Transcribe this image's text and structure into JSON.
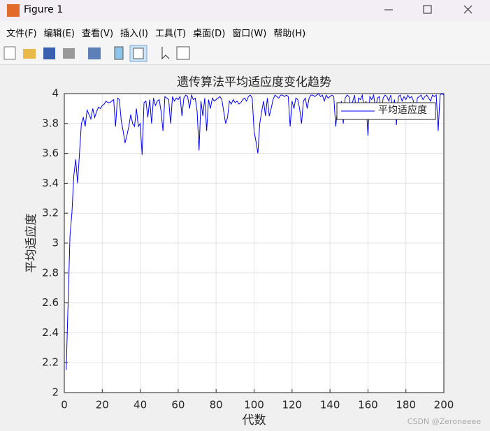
{
  "window": {
    "title": "Figure 1",
    "menu": [
      "文件(F)",
      "编辑(E)",
      "查看(V)",
      "插入(I)",
      "工具(T)",
      "桌面(D)",
      "窗口(W)",
      "帮助(H)"
    ]
  },
  "chart_data": {
    "type": "line",
    "title": "遗传算法平均适应度变化趋势",
    "x_label": "代数",
    "y_label": "平均适应度",
    "x": [
      1,
      2,
      3,
      4,
      5,
      6,
      7,
      8,
      9,
      10,
      11,
      12,
      13,
      14,
      15,
      16,
      17,
      18,
      19,
      20,
      21,
      22,
      23,
      24,
      25,
      26,
      27,
      28,
      29,
      30,
      31,
      32,
      33,
      34,
      35,
      36,
      37,
      38,
      39,
      40,
      41,
      42,
      43,
      44,
      45,
      46,
      47,
      48,
      49,
      50,
      51,
      52,
      53,
      54,
      55,
      56,
      57,
      58,
      59,
      60,
      61,
      62,
      63,
      64,
      65,
      66,
      67,
      68,
      69,
      70,
      71,
      72,
      73,
      74,
      75,
      76,
      77,
      78,
      79,
      80,
      81,
      82,
      83,
      84,
      85,
      86,
      87,
      88,
      89,
      90,
      91,
      92,
      93,
      94,
      95,
      96,
      97,
      98,
      99,
      100,
      101,
      102,
      103,
      104,
      105,
      106,
      107,
      108,
      109,
      110,
      111,
      112,
      113,
      114,
      115,
      116,
      117,
      118,
      119,
      120,
      121,
      122,
      123,
      124,
      125,
      126,
      127,
      128,
      129,
      130,
      131,
      132,
      133,
      134,
      135,
      136,
      137,
      138,
      139,
      140,
      141,
      142,
      143,
      144,
      145,
      146,
      147,
      148,
      149,
      150,
      151,
      152,
      153,
      154,
      155,
      156,
      157,
      158,
      159,
      160,
      161,
      162,
      163,
      164,
      165,
      166,
      167,
      168,
      169,
      170,
      171,
      172,
      173,
      174,
      175,
      176,
      177,
      178,
      179,
      180,
      181,
      182,
      183,
      184,
      185,
      186,
      187,
      188,
      189,
      190,
      191,
      192,
      193,
      194,
      195,
      196,
      197,
      198,
      199,
      200
    ],
    "series": [
      {
        "name": "平均适应度",
        "color": "#0000ff",
        "values": [
          2.15,
          2.6,
          3.05,
          3.2,
          3.45,
          3.56,
          3.4,
          3.6,
          3.8,
          3.84,
          3.78,
          3.89,
          3.86,
          3.83,
          3.9,
          3.84,
          3.88,
          3.91,
          3.9,
          3.92,
          3.93,
          3.95,
          3.94,
          3.94,
          3.95,
          3.96,
          3.78,
          3.97,
          3.96,
          3.82,
          3.75,
          3.67,
          3.72,
          3.78,
          3.86,
          3.8,
          3.78,
          3.9,
          3.78,
          3.8,
          3.59,
          3.94,
          3.95,
          3.84,
          3.96,
          3.8,
          3.97,
          3.92,
          3.95,
          3.96,
          3.88,
          3.75,
          3.98,
          3.97,
          3.96,
          3.8,
          3.98,
          3.95,
          3.97,
          3.96,
          3.98,
          3.85,
          3.97,
          3.99,
          3.98,
          3.9,
          3.99,
          3.96,
          3.97,
          3.88,
          3.62,
          3.95,
          3.85,
          3.97,
          3.75,
          3.96,
          3.9,
          3.97,
          3.95,
          3.96,
          3.97,
          3.98,
          3.96,
          3.88,
          3.8,
          3.84,
          3.95,
          3.93,
          3.96,
          3.94,
          3.95,
          3.93,
          3.94,
          3.96,
          3.97,
          3.95,
          3.98,
          3.99,
          3.97,
          3.75,
          3.68,
          3.6,
          3.8,
          3.88,
          3.95,
          3.85,
          3.97,
          3.85,
          3.9,
          3.96,
          3.99,
          3.98,
          3.97,
          3.99,
          3.99,
          3.98,
          3.99,
          3.98,
          3.78,
          3.95,
          3.9,
          3.97,
          3.96,
          3.9,
          3.8,
          3.95,
          3.97,
          3.9,
          3.97,
          3.99,
          3.99,
          3.98,
          3.99,
          4.0,
          3.98,
          3.99,
          3.95,
          3.99,
          3.97,
          3.98,
          3.99,
          3.98,
          3.78,
          3.9,
          3.86,
          3.95,
          3.8,
          3.97,
          3.99,
          3.98,
          3.88,
          3.95,
          3.99,
          3.84,
          3.97,
          3.96,
          3.99,
          3.9,
          3.95,
          3.72,
          3.98,
          3.96,
          3.99,
          3.9,
          3.97,
          3.98,
          3.86,
          3.97,
          3.99,
          3.98,
          3.95,
          3.99,
          3.9,
          3.96,
          3.79,
          3.98,
          3.99,
          3.95,
          3.98,
          3.96,
          3.99,
          3.97,
          3.98,
          3.95,
          3.84,
          3.97,
          3.98,
          3.99,
          3.96,
          3.98,
          3.99,
          3.97,
          3.95,
          3.99,
          3.98,
          3.99,
          3.75,
          3.99,
          4.0,
          3.99
        ]
      }
    ],
    "xlim": [
      0,
      200
    ],
    "xticks": [
      0,
      20,
      40,
      60,
      80,
      100,
      120,
      140,
      160,
      180,
      200
    ],
    "ylim": [
      2,
      4
    ],
    "yticks": [
      2,
      2.2,
      2.4,
      2.6,
      2.8,
      3,
      3.2,
      3.4,
      3.6,
      3.8,
      4
    ],
    "grid": true,
    "legend": "northeast"
  },
  "watermark": "CSDN @Zeroneeee"
}
